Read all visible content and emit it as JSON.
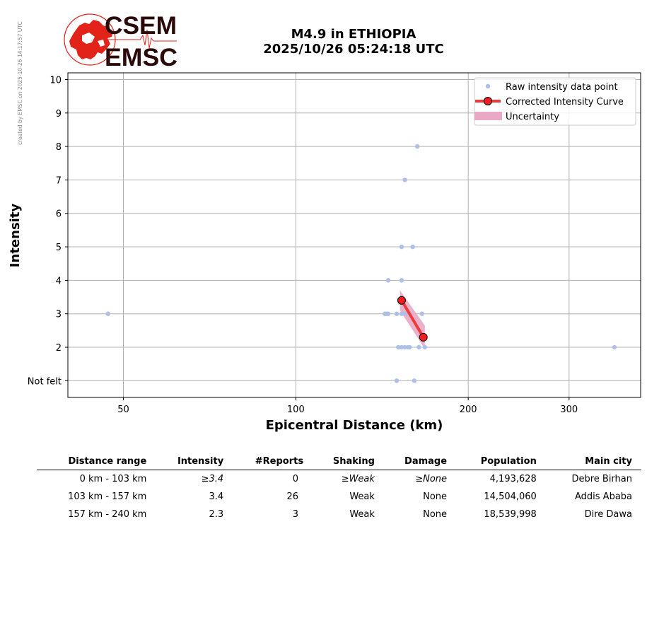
{
  "stamp_text": "created by EMSC on 2025-10-26 14:17:57 UTC",
  "logo": {
    "top": "CSEM",
    "bottom": "EMSC",
    "colors": {
      "red": "#e2231a",
      "dark": "#2b0a0a"
    }
  },
  "title": {
    "line1": "M4.9 in ETHIOPIA",
    "line2": "2025/10/26 05:24:18 UTC"
  },
  "chart_data": {
    "type": "scatter",
    "xlabel": "Epicentral Distance (km)",
    "ylabel": "Intensity",
    "x_scale": "log",
    "xlim": [
      40,
      400
    ],
    "ylim": [
      0.5,
      10.2
    ],
    "xticks": [
      50,
      100,
      200,
      300
    ],
    "xtick_labels": [
      "50",
      "100",
      "200",
      "300"
    ],
    "yticks": [
      1,
      2,
      3,
      4,
      5,
      6,
      7,
      8,
      9,
      10
    ],
    "ytick_labels": [
      "Not felt",
      "2",
      "3",
      "4",
      "5",
      "6",
      "7",
      "8",
      "9",
      "10"
    ],
    "grid": true,
    "legend_position": "top-right",
    "legend": [
      "Raw intensity data point",
      "Corrected Intensity Curve",
      "Uncertainty"
    ],
    "colors": {
      "raw": "#aebfe8",
      "curve": "#f03a3a",
      "marker": "#f01e1e",
      "uncertainty": "#e8a8c6",
      "grid": "#b0b0b0"
    },
    "raw_points": [
      {
        "x": 47,
        "y": 3
      },
      {
        "x": 143,
        "y": 3
      },
      {
        "x": 144,
        "y": 3
      },
      {
        "x": 145,
        "y": 3
      },
      {
        "x": 150,
        "y": 3
      },
      {
        "x": 153,
        "y": 3
      },
      {
        "x": 155,
        "y": 3
      },
      {
        "x": 158,
        "y": 3
      },
      {
        "x": 166,
        "y": 3
      },
      {
        "x": 145,
        "y": 4
      },
      {
        "x": 153,
        "y": 4
      },
      {
        "x": 153,
        "y": 5
      },
      {
        "x": 160,
        "y": 5
      },
      {
        "x": 155,
        "y": 7
      },
      {
        "x": 163,
        "y": 8
      },
      {
        "x": 151,
        "y": 2
      },
      {
        "x": 153,
        "y": 2
      },
      {
        "x": 155,
        "y": 2
      },
      {
        "x": 157,
        "y": 2
      },
      {
        "x": 158,
        "y": 2
      },
      {
        "x": 164,
        "y": 2
      },
      {
        "x": 168,
        "y": 2
      },
      {
        "x": 360,
        "y": 2
      },
      {
        "x": 150,
        "y": 1
      },
      {
        "x": 161,
        "y": 1
      }
    ],
    "curve": {
      "x": [
        153,
        167
      ],
      "y": [
        3.4,
        2.3
      ]
    },
    "uncertainty": {
      "x": [
        152,
        168
      ],
      "y_low": [
        3.1,
        1.95
      ],
      "y_high": [
        3.7,
        2.65
      ]
    }
  },
  "table": {
    "headers": [
      "Distance range",
      "Intensity",
      "#Reports",
      "Shaking",
      "Damage",
      "Population",
      "Main city"
    ],
    "rows": [
      [
        "0 km -  103 km",
        "≥3.4",
        "0",
        "≥Weak",
        "≥None",
        "4,193,628",
        "Debre Birhan"
      ],
      [
        "103 km -  157 km",
        "3.4",
        "26",
        "Weak",
        "None",
        "14,504,060",
        "Addis Ababa"
      ],
      [
        "157 km -  240 km",
        "2.3",
        "3",
        "Weak",
        "None",
        "18,539,998",
        "Dire Dawa"
      ]
    ]
  }
}
